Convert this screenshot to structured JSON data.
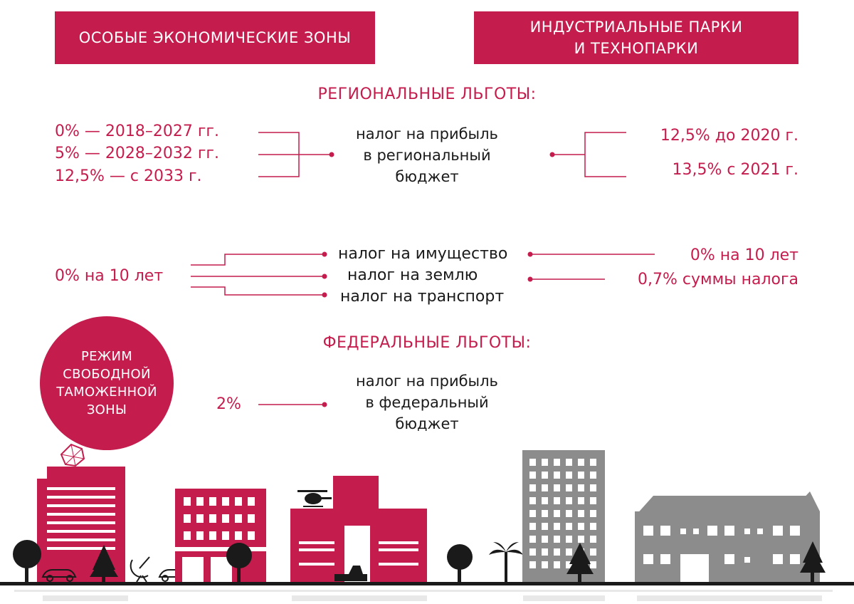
{
  "header": {
    "left": "ОСОБЫЕ ЭКОНОМИЧЕСКИЕ ЗОНЫ",
    "right_lines": [
      "ИНДУСТРИАЛЬНЫЕ ПАРКИ",
      "И ТЕХНОПАРКИ"
    ]
  },
  "regional": {
    "title": "РЕГИОНАЛЬНЫЕ ЛЬГОТЫ:",
    "profit_tax": {
      "left": [
        "0% — 2018–2027 гг.",
        "5% — 2028–2032 гг.",
        "12,5% — с 2033 г."
      ],
      "center": [
        "налог на прибыль",
        "в региональный",
        "бюджет"
      ],
      "right": [
        "12,5% до 2020 г.",
        "13,5% с 2021 г."
      ]
    },
    "property_taxes": {
      "left": "0% на 10 лет",
      "center": [
        "налог на имущество",
        "налог на землю",
        "налог на транспорт"
      ],
      "right": [
        "0% на 10 лет",
        "0,7% суммы налога"
      ]
    }
  },
  "federal": {
    "title": "ФЕДЕРАЛЬНЫЕ ЛЬГОТЫ:",
    "left": "2%",
    "center": [
      "налог на прибыль",
      "в федеральный",
      "бюджет"
    ]
  },
  "customs_zone": [
    "РЕЖИМ",
    "СВОБОДНОЙ",
    "ТАМОЖЕННОЙ",
    "ЗОНЫ"
  ],
  "colors": {
    "accent": "#c41d4d",
    "text": "#1a1a1a",
    "building_gray": "#8c8c8c",
    "ground": "#1a1a1a"
  }
}
